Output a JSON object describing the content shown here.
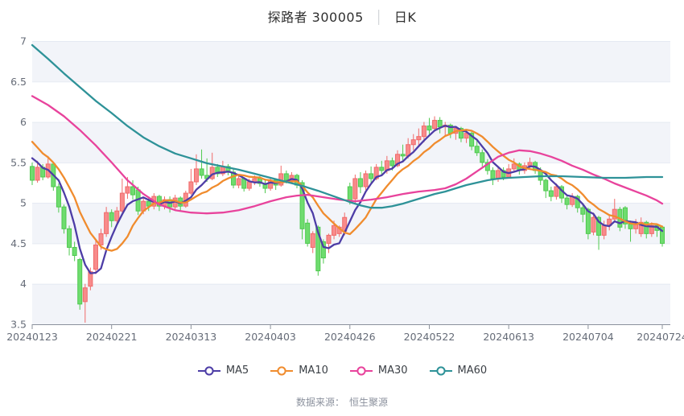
{
  "title": {
    "stock": "探路者 300005",
    "separator": "│",
    "kline": "日K"
  },
  "footer": {
    "source_label": "数据来源：",
    "source_value": "恒生聚源"
  },
  "legend": {
    "items": [
      {
        "label": "MA5",
        "color": "#4d3da6"
      },
      {
        "label": "MA10",
        "color": "#f08c2e"
      },
      {
        "label": "MA30",
        "color": "#e8439c"
      },
      {
        "label": "MA60",
        "color": "#2e9298"
      }
    ]
  },
  "chart_data": {
    "type": "candlestick",
    "title": "探路者 300005 日K",
    "ylim": [
      3.5,
      7
    ],
    "y_ticks": [
      7,
      6.5,
      6,
      5.5,
      5,
      4.5,
      4,
      3.5
    ],
    "x_tick_labels": [
      "20240123",
      "20240221",
      "20240313",
      "20240403",
      "20240426",
      "20240522",
      "20240613",
      "20240704",
      "20240724"
    ],
    "x_tick_indices": [
      0,
      15,
      30,
      45,
      60,
      75,
      90,
      105,
      119
    ],
    "colors": {
      "up_fill": "#f88b8b",
      "up_stroke": "#f06a6a",
      "down_fill": "#6fdc6f",
      "down_stroke": "#4fc94f",
      "ma5": "#4d3da6",
      "ma10": "#f08c2e",
      "ma30": "#e8439c",
      "ma60": "#2e9298",
      "band": "#f2f4f9",
      "grid": "#e5e9f2",
      "axis": "#8b919c",
      "label": "#666c78"
    },
    "candles": [
      [
        5.45,
        5.5,
        5.22,
        5.28
      ],
      [
        5.28,
        5.52,
        5.25,
        5.44
      ],
      [
        5.44,
        5.48,
        5.28,
        5.32
      ],
      [
        5.32,
        5.58,
        5.3,
        5.48
      ],
      [
        5.48,
        5.5,
        5.15,
        5.2
      ],
      [
        5.2,
        5.24,
        4.88,
        4.95
      ],
      [
        4.95,
        4.98,
        4.62,
        4.68
      ],
      [
        4.68,
        4.72,
        4.35,
        4.45
      ],
      [
        4.45,
        4.52,
        4.28,
        4.35
      ],
      [
        4.3,
        4.32,
        3.68,
        3.75
      ],
      [
        3.78,
        4.0,
        3.52,
        3.95
      ],
      [
        3.97,
        4.2,
        3.92,
        4.15
      ],
      [
        4.18,
        4.55,
        4.12,
        4.48
      ],
      [
        4.48,
        4.68,
        4.42,
        4.62
      ],
      [
        4.62,
        4.95,
        4.58,
        4.88
      ],
      [
        4.88,
        4.92,
        4.7,
        4.78
      ],
      [
        4.78,
        4.95,
        4.74,
        4.9
      ],
      [
        4.9,
        5.3,
        4.88,
        5.12
      ],
      [
        5.12,
        5.32,
        5.05,
        5.2
      ],
      [
        5.2,
        5.28,
        5.04,
        5.1
      ],
      [
        5.16,
        5.2,
        4.85,
        4.9
      ],
      [
        4.9,
        5.06,
        4.86,
        5.02
      ],
      [
        5.02,
        5.08,
        4.9,
        4.96
      ],
      [
        4.96,
        5.12,
        4.92,
        5.08
      ],
      [
        5.08,
        5.1,
        4.9,
        4.96
      ],
      [
        4.96,
        5.08,
        4.92,
        5.04
      ],
      [
        5.04,
        5.08,
        4.88,
        4.95
      ],
      [
        4.95,
        5.1,
        4.92,
        5.06
      ],
      [
        5.06,
        5.08,
        4.9,
        4.96
      ],
      [
        4.96,
        5.15,
        4.94,
        5.12
      ],
      [
        5.12,
        5.42,
        5.1,
        5.26
      ],
      [
        5.26,
        5.6,
        5.22,
        5.42
      ],
      [
        5.42,
        5.66,
        5.3,
        5.34
      ],
      [
        5.34,
        5.55,
        5.26,
        5.3
      ],
      [
        5.3,
        5.62,
        5.28,
        5.44
      ],
      [
        5.44,
        5.48,
        5.32,
        5.36
      ],
      [
        5.36,
        5.52,
        5.33,
        5.45
      ],
      [
        5.45,
        5.48,
        5.34,
        5.38
      ],
      [
        5.38,
        5.42,
        5.18,
        5.22
      ],
      [
        5.22,
        5.34,
        5.18,
        5.3
      ],
      [
        5.3,
        5.32,
        5.14,
        5.18
      ],
      [
        5.18,
        5.3,
        5.15,
        5.26
      ],
      [
        5.26,
        5.34,
        5.22,
        5.3
      ],
      [
        5.3,
        5.33,
        5.2,
        5.24
      ],
      [
        5.24,
        5.28,
        5.12,
        5.18
      ],
      [
        5.18,
        5.32,
        5.15,
        5.28
      ],
      [
        5.28,
        5.3,
        5.16,
        5.22
      ],
      [
        5.22,
        5.46,
        5.2,
        5.36
      ],
      [
        5.36,
        5.4,
        5.24,
        5.28
      ],
      [
        5.28,
        5.38,
        5.24,
        5.34
      ],
      [
        5.34,
        5.36,
        5.18,
        5.22
      ],
      [
        5.25,
        5.28,
        4.55,
        4.68
      ],
      [
        4.75,
        4.8,
        4.46,
        4.5
      ],
      [
        4.45,
        4.65,
        4.38,
        4.62
      ],
      [
        4.7,
        4.72,
        4.1,
        4.16
      ],
      [
        4.52,
        4.55,
        4.25,
        4.32
      ],
      [
        4.5,
        4.62,
        4.38,
        4.6
      ],
      [
        4.6,
        4.78,
        4.55,
        4.72
      ],
      [
        4.62,
        4.72,
        4.58,
        4.7
      ],
      [
        4.65,
        4.88,
        4.6,
        4.82
      ],
      [
        5.2,
        5.25,
        4.98,
        5.02
      ],
      [
        5.05,
        5.35,
        5.0,
        5.3
      ],
      [
        5.3,
        5.38,
        5.12,
        5.2
      ],
      [
        5.2,
        5.4,
        5.16,
        5.36
      ],
      [
        5.36,
        5.45,
        5.25,
        5.3
      ],
      [
        5.3,
        5.48,
        5.28,
        5.44
      ],
      [
        5.44,
        5.52,
        5.35,
        5.4
      ],
      [
        5.4,
        5.58,
        5.36,
        5.52
      ],
      [
        5.52,
        5.56,
        5.4,
        5.46
      ],
      [
        5.46,
        5.65,
        5.44,
        5.6
      ],
      [
        5.6,
        5.72,
        5.52,
        5.58
      ],
      [
        5.58,
        5.8,
        5.55,
        5.72
      ],
      [
        5.72,
        5.85,
        5.65,
        5.78
      ],
      [
        5.78,
        5.92,
        5.7,
        5.82
      ],
      [
        5.82,
        6.0,
        5.75,
        5.95
      ],
      [
        5.95,
        6.05,
        5.85,
        5.9
      ],
      [
        5.92,
        6.07,
        5.88,
        6.02
      ],
      [
        6.02,
        6.06,
        5.86,
        5.94
      ],
      [
        5.94,
        6.0,
        5.82,
        5.96
      ],
      [
        5.96,
        5.98,
        5.8,
        5.86
      ],
      [
        5.86,
        5.95,
        5.78,
        5.92
      ],
      [
        5.92,
        5.94,
        5.75,
        5.8
      ],
      [
        5.8,
        5.9,
        5.74,
        5.86
      ],
      [
        5.86,
        5.88,
        5.65,
        5.7
      ],
      [
        5.7,
        5.78,
        5.58,
        5.62
      ],
      [
        5.62,
        5.66,
        5.45,
        5.5
      ],
      [
        5.5,
        5.54,
        5.35,
        5.4
      ],
      [
        5.4,
        5.44,
        5.22,
        5.3
      ],
      [
        5.3,
        5.44,
        5.26,
        5.4
      ],
      [
        5.4,
        5.44,
        5.28,
        5.32
      ],
      [
        5.32,
        5.48,
        5.3,
        5.42
      ],
      [
        5.42,
        5.55,
        5.38,
        5.48
      ],
      [
        5.48,
        5.5,
        5.35,
        5.4
      ],
      [
        5.4,
        5.5,
        5.36,
        5.46
      ],
      [
        5.46,
        5.56,
        5.42,
        5.5
      ],
      [
        5.5,
        5.52,
        5.36,
        5.4
      ],
      [
        5.4,
        5.44,
        5.22,
        5.28
      ],
      [
        5.28,
        5.3,
        5.06,
        5.15
      ],
      [
        5.15,
        5.2,
        5.02,
        5.08
      ],
      [
        5.08,
        5.24,
        5.04,
        5.2
      ],
      [
        5.2,
        5.22,
        5.0,
        5.06
      ],
      [
        5.06,
        5.1,
        4.92,
        4.98
      ],
      [
        4.98,
        5.12,
        4.95,
        5.08
      ],
      [
        5.08,
        5.1,
        4.88,
        4.94
      ],
      [
        4.94,
        5.0,
        4.76,
        4.86
      ],
      [
        4.92,
        4.94,
        4.55,
        4.62
      ],
      [
        4.64,
        4.88,
        4.6,
        4.82
      ],
      [
        4.82,
        4.84,
        4.42,
        4.6
      ],
      [
        4.6,
        4.78,
        4.55,
        4.72
      ],
      [
        4.72,
        4.86,
        4.66,
        4.8
      ],
      [
        4.8,
        5.05,
        4.76,
        4.92
      ],
      [
        4.92,
        4.95,
        4.65,
        4.7
      ],
      [
        4.94,
        4.96,
        4.68,
        4.74
      ],
      [
        4.74,
        4.78,
        4.52,
        4.68
      ],
      [
        4.68,
        4.8,
        4.62,
        4.76
      ],
      [
        4.62,
        4.82,
        4.58,
        4.76
      ],
      [
        4.76,
        4.78,
        4.56,
        4.62
      ],
      [
        4.62,
        4.76,
        4.58,
        4.72
      ],
      [
        4.72,
        4.74,
        4.58,
        4.66
      ],
      [
        4.7,
        4.72,
        4.46,
        4.5
      ]
    ],
    "prior_closes_seed": [
      6.15,
      6.05,
      5.95,
      5.86,
      5.78,
      5.7,
      5.66,
      5.6,
      5.52
    ],
    "ma30_points": [
      [
        0,
        6.32
      ],
      [
        3,
        6.21
      ],
      [
        6,
        6.07
      ],
      [
        9,
        5.9
      ],
      [
        12,
        5.71
      ],
      [
        15,
        5.5
      ],
      [
        18,
        5.28
      ],
      [
        21,
        5.11
      ],
      [
        24,
        4.98
      ],
      [
        27,
        4.91
      ],
      [
        30,
        4.88
      ],
      [
        33,
        4.87
      ],
      [
        36,
        4.88
      ],
      [
        39,
        4.91
      ],
      [
        42,
        4.96
      ],
      [
        45,
        5.02
      ],
      [
        48,
        5.07
      ],
      [
        50,
        5.09
      ],
      [
        52,
        5.1
      ],
      [
        55,
        5.07
      ],
      [
        58,
        5.04
      ],
      [
        61,
        5.02
      ],
      [
        64,
        5.04
      ],
      [
        67,
        5.07
      ],
      [
        70,
        5.11
      ],
      [
        73,
        5.14
      ],
      [
        76,
        5.16
      ],
      [
        78,
        5.18
      ],
      [
        80,
        5.23
      ],
      [
        82,
        5.3
      ],
      [
        84,
        5.39
      ],
      [
        86,
        5.48
      ],
      [
        88,
        5.57
      ],
      [
        90,
        5.62
      ],
      [
        92,
        5.65
      ],
      [
        94,
        5.64
      ],
      [
        96,
        5.61
      ],
      [
        98,
        5.57
      ],
      [
        100,
        5.52
      ],
      [
        102,
        5.46
      ],
      [
        104,
        5.41
      ],
      [
        106,
        5.35
      ],
      [
        108,
        5.3
      ],
      [
        110,
        5.24
      ],
      [
        112,
        5.19
      ],
      [
        114,
        5.14
      ],
      [
        116,
        5.09
      ],
      [
        118,
        5.03
      ],
      [
        119,
        4.99
      ]
    ],
    "ma60_points": [
      [
        0,
        6.95
      ],
      [
        3,
        6.78
      ],
      [
        6,
        6.6
      ],
      [
        9,
        6.43
      ],
      [
        12,
        6.26
      ],
      [
        15,
        6.11
      ],
      [
        18,
        5.95
      ],
      [
        21,
        5.81
      ],
      [
        24,
        5.7
      ],
      [
        27,
        5.61
      ],
      [
        30,
        5.55
      ],
      [
        33,
        5.49
      ],
      [
        36,
        5.45
      ],
      [
        39,
        5.41
      ],
      [
        42,
        5.36
      ],
      [
        45,
        5.31
      ],
      [
        48,
        5.26
      ],
      [
        51,
        5.21
      ],
      [
        54,
        5.15
      ],
      [
        57,
        5.08
      ],
      [
        60,
        5.01
      ],
      [
        62,
        4.97
      ],
      [
        64,
        4.94
      ],
      [
        66,
        4.94
      ],
      [
        68,
        4.96
      ],
      [
        70,
        4.99
      ],
      [
        72,
        5.03
      ],
      [
        74,
        5.07
      ],
      [
        76,
        5.11
      ],
      [
        78,
        5.14
      ],
      [
        80,
        5.18
      ],
      [
        82,
        5.22
      ],
      [
        84,
        5.25
      ],
      [
        86,
        5.28
      ],
      [
        88,
        5.3
      ],
      [
        90,
        5.31
      ],
      [
        93,
        5.32
      ],
      [
        96,
        5.33
      ],
      [
        100,
        5.33
      ],
      [
        104,
        5.32
      ],
      [
        108,
        5.31
      ],
      [
        112,
        5.31
      ],
      [
        116,
        5.32
      ],
      [
        119,
        5.32
      ]
    ]
  }
}
